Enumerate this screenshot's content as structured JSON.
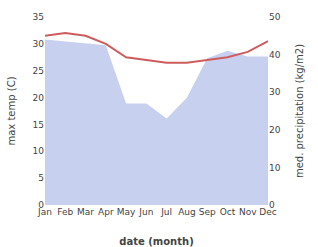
{
  "chart_data": {
    "type": "line",
    "categories": [
      "Jan",
      "Feb",
      "Mar",
      "Apr",
      "May",
      "Jun",
      "Jul",
      "Aug",
      "Sep",
      "Oct",
      "Nov",
      "Dec"
    ],
    "xlabel": "date (month)",
    "ylabel": "max temp (C)",
    "y2label": "med. precipitation (kg/m2)",
    "series": [
      {
        "type": "area",
        "axis": "y2",
        "color": "#c8d0f0",
        "values": [
          44.0,
          43.5,
          43.0,
          42.5,
          27.0,
          27.0,
          23.0,
          28.5,
          39.0,
          41.0,
          39.5,
          39.5
        ]
      },
      {
        "type": "line",
        "color": "#cd5c5c",
        "values": [
          31.5,
          32.0,
          31.5,
          30.0,
          27.5,
          27.0,
          26.5,
          26.5,
          27.0,
          27.5,
          28.5,
          30.5
        ]
      }
    ],
    "ylim": [
      0,
      35
    ],
    "yticks": [
      0,
      5,
      10,
      15,
      20,
      25,
      30,
      35
    ],
    "y2lim": [
      0,
      50
    ],
    "y2ticks": [
      0,
      10,
      20,
      30,
      40,
      50
    ],
    "grid": false
  }
}
